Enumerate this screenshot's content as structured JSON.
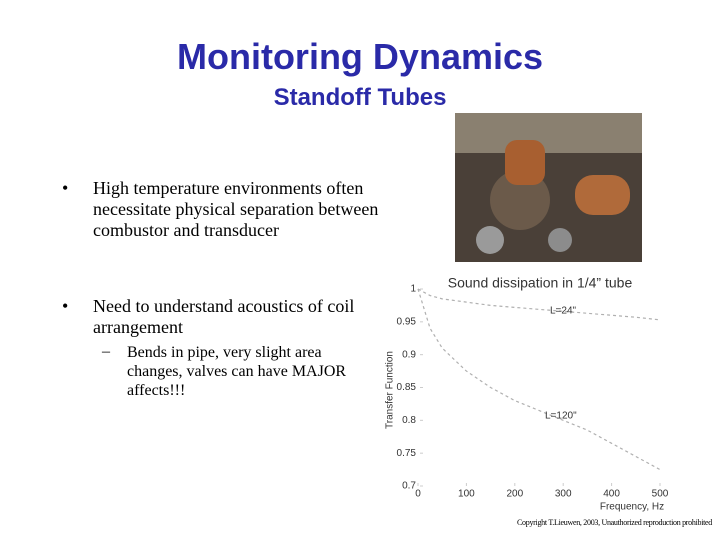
{
  "title": "Monitoring Dynamics",
  "subtitle": "Standoff Tubes",
  "bullets": [
    {
      "text": "High temperature environments often necessitate physical separation between combustor and transducer"
    },
    {
      "text": "Need to understand acoustics of coil arrangement",
      "sub": [
        "Bends in pipe, very slight area changes, valves can have MAJOR affects!!!"
      ]
    }
  ],
  "chart_data": {
    "type": "line",
    "title": "Sound dissipation in 1/4” tube",
    "xlabel": "Frequency, Hz",
    "ylabel": "Transfer Function",
    "x": [
      0,
      25,
      50,
      100,
      150,
      200,
      250,
      300,
      350,
      400,
      450,
      500
    ],
    "series": [
      {
        "name": "L=24\"",
        "color": "#b0b0b0",
        "values": [
          1,
          0.99,
          0.985,
          0.98,
          0.975,
          0.972,
          0.969,
          0.966,
          0.963,
          0.96,
          0.957,
          0.953
        ]
      },
      {
        "name": "L=120\"",
        "color": "#b0b0b0",
        "values": [
          1,
          0.94,
          0.91,
          0.875,
          0.85,
          0.83,
          0.815,
          0.8,
          0.785,
          0.765,
          0.745,
          0.725
        ]
      }
    ],
    "xlim": [
      0,
      500
    ],
    "xticks": [
      0,
      100,
      200,
      300,
      400,
      500
    ],
    "ylim": [
      0.7,
      1
    ],
    "yticks": [
      0.7,
      0.75,
      0.8,
      0.85,
      0.9,
      0.95,
      1
    ]
  },
  "footer": "Copyright T.Lieuwen, 2003, Unauthorized reproduction prohibited"
}
